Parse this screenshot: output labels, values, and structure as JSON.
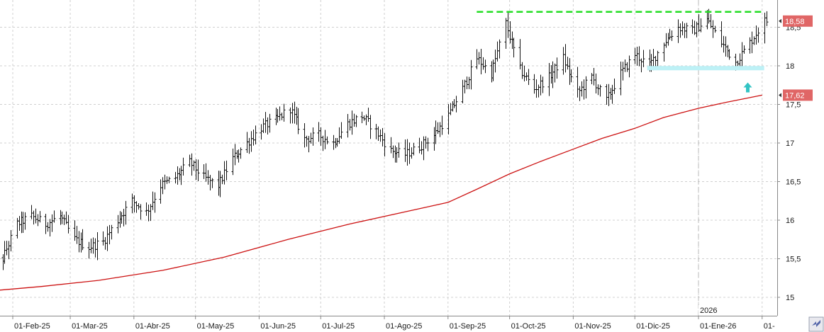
{
  "chart_data": {
    "type": "ohlc-bar",
    "y_ticks": [
      "15",
      "15,5",
      "16",
      "16,5",
      "17",
      "17,5",
      "18",
      "18,5"
    ],
    "y_tick_values": [
      15,
      15.5,
      16,
      16.5,
      17,
      17.5,
      18,
      18.5
    ],
    "ylim": [
      14.75,
      19.0
    ],
    "grid": true,
    "x_ticks": [
      {
        "label": "01-Feb-25",
        "date": "2025-02-01"
      },
      {
        "label": "01-Mar-25",
        "date": "2025-03-01"
      },
      {
        "label": "01-Abr-25",
        "date": "2025-04-01"
      },
      {
        "label": "01-May-25",
        "date": "2025-05-01"
      },
      {
        "label": "01-Jun-25",
        "date": "2025-06-01"
      },
      {
        "label": "01-Jul-25",
        "date": "2025-07-01"
      },
      {
        "label": "01-Ago-25",
        "date": "2025-08-01"
      },
      {
        "label": "01-Sep-25",
        "date": "2025-09-01"
      },
      {
        "label": "01-Oct-25",
        "date": "2025-10-01"
      },
      {
        "label": "01-Nov-25",
        "date": "2025-11-01"
      },
      {
        "label": "01-Dic-25",
        "date": "2025-12-01"
      },
      {
        "label": "01-Ene-26",
        "date": "2026-01-01"
      },
      {
        "label": "01-",
        "date": "2026-02-01"
      }
    ],
    "year_marker": {
      "label": "2026",
      "date": "2026-01-01"
    },
    "last_price": {
      "label": "18,58",
      "value": 18.58,
      "color": "#e06666"
    },
    "moving_average_last": {
      "label": "17,62",
      "value": 17.62,
      "color": "#e06666"
    },
    "moving_average": {
      "color": "#cc1111",
      "points": [
        [
          "2025-01-20",
          15.08
        ],
        [
          "2025-02-15",
          15.14
        ],
        [
          "2025-03-15",
          15.22
        ],
        [
          "2025-04-15",
          15.35
        ],
        [
          "2025-05-15",
          15.52
        ],
        [
          "2025-06-15",
          15.75
        ],
        [
          "2025-07-15",
          15.95
        ],
        [
          "2025-08-15",
          16.13
        ],
        [
          "2025-09-01",
          16.23
        ],
        [
          "2025-09-15",
          16.4
        ],
        [
          "2025-10-01",
          16.6
        ],
        [
          "2025-10-15",
          16.75
        ],
        [
          "2025-11-01",
          16.92
        ],
        [
          "2025-11-15",
          17.06
        ],
        [
          "2025-12-01",
          17.19
        ],
        [
          "2025-12-15",
          17.33
        ],
        [
          "2026-01-01",
          17.45
        ],
        [
          "2026-01-15",
          17.53
        ],
        [
          "2026-02-01",
          17.62
        ]
      ]
    },
    "resistance_line": {
      "value": 18.7,
      "start": "2025-09-15",
      "end": "2026-02-02",
      "color": "#22dd22",
      "style": "dashed"
    },
    "support_zone": {
      "value": 17.97,
      "start": "2025-12-07",
      "end": "2026-02-02",
      "color": "#bdf1f6"
    },
    "signal_arrow": {
      "date": "2026-01-25",
      "value": 17.72,
      "direction": "up",
      "color": "#33c4c4"
    },
    "weekly_price_path": [
      [
        "2025-01-20",
        15.45
      ],
      [
        "2025-01-27",
        15.5
      ],
      [
        "2025-02-03",
        15.95
      ],
      [
        "2025-02-10",
        16.05
      ],
      [
        "2025-02-17",
        15.95
      ],
      [
        "2025-02-24",
        16.05
      ],
      [
        "2025-03-03",
        15.75
      ],
      [
        "2025-03-10",
        15.65
      ],
      [
        "2025-03-17",
        15.72
      ],
      [
        "2025-03-24",
        16.0
      ],
      [
        "2025-03-31",
        16.25
      ],
      [
        "2025-04-07",
        16.1
      ],
      [
        "2025-04-14",
        16.45
      ],
      [
        "2025-04-21",
        16.55
      ],
      [
        "2025-04-28",
        16.75
      ],
      [
        "2025-05-05",
        16.55
      ],
      [
        "2025-05-12",
        16.45
      ],
      [
        "2025-05-19",
        16.8
      ],
      [
        "2025-05-26",
        17.0
      ],
      [
        "2025-06-02",
        17.2
      ],
      [
        "2025-06-09",
        17.3
      ],
      [
        "2025-06-16",
        17.45
      ],
      [
        "2025-06-23",
        17.05
      ],
      [
        "2025-06-30",
        17.1
      ],
      [
        "2025-07-07",
        17.0
      ],
      [
        "2025-07-14",
        17.25
      ],
      [
        "2025-07-21",
        17.35
      ],
      [
        "2025-07-28",
        17.15
      ],
      [
        "2025-08-04",
        16.9
      ],
      [
        "2025-08-11",
        16.85
      ],
      [
        "2025-08-18",
        16.95
      ],
      [
        "2025-08-25",
        17.1
      ],
      [
        "2025-09-01",
        17.35
      ],
      [
        "2025-09-08",
        17.7
      ],
      [
        "2025-09-15",
        18.1
      ],
      [
        "2025-09-22",
        17.9
      ],
      [
        "2025-09-29",
        18.55
      ],
      [
        "2025-10-06",
        17.95
      ],
      [
        "2025-10-13",
        17.7
      ],
      [
        "2025-10-20",
        17.85
      ],
      [
        "2025-10-27",
        18.1
      ],
      [
        "2025-11-03",
        17.65
      ],
      [
        "2025-11-10",
        17.85
      ],
      [
        "2025-11-17",
        17.55
      ],
      [
        "2025-11-24",
        17.9
      ],
      [
        "2025-12-01",
        18.15
      ],
      [
        "2025-12-08",
        18.0
      ],
      [
        "2025-12-15",
        18.3
      ],
      [
        "2025-12-22",
        18.5
      ],
      [
        "2025-12-29",
        18.45
      ],
      [
        "2026-01-05",
        18.6
      ],
      [
        "2026-01-12",
        18.3
      ],
      [
        "2026-01-19",
        18.05
      ],
      [
        "2026-01-26",
        18.3
      ],
      [
        "2026-02-02",
        18.58
      ]
    ]
  },
  "colors": {
    "grid": "#d0d0d0",
    "bars": "#111111",
    "axis": "#888888",
    "corner": "#e8e8ee"
  },
  "icons": {
    "corner": "scroll-corner-icon"
  }
}
